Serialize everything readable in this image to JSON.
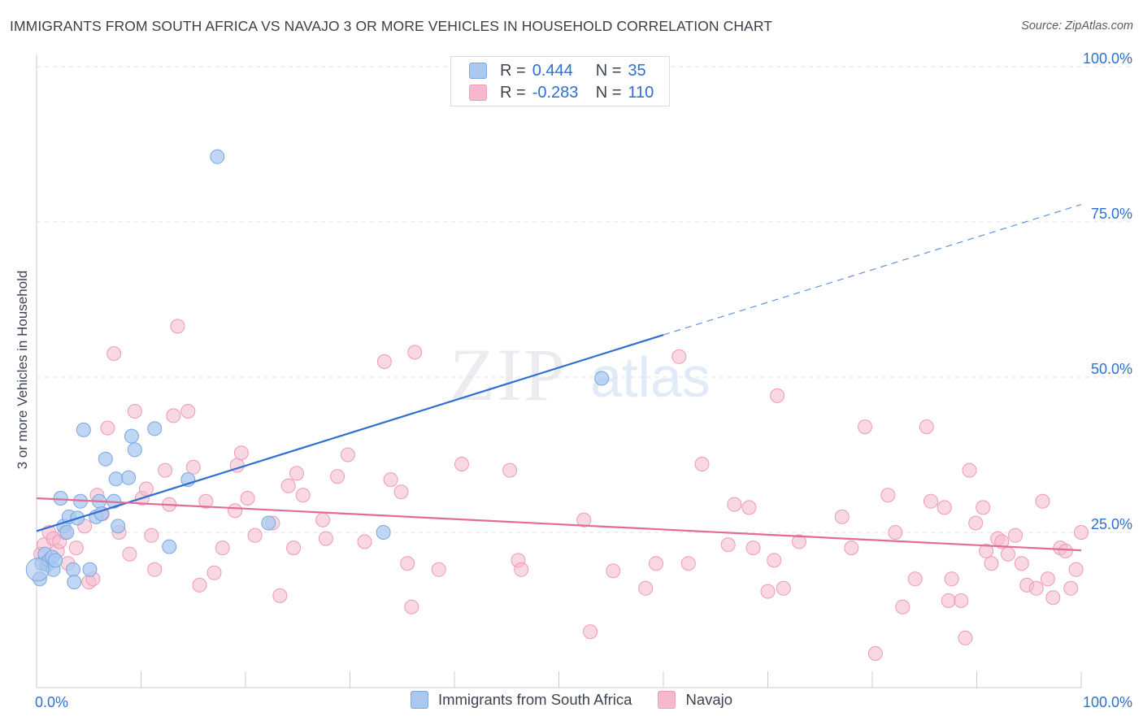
{
  "header": {
    "title": "IMMIGRANTS FROM SOUTH AFRICA VS NAVAJO 3 OR MORE VEHICLES IN HOUSEHOLD CORRELATION CHART",
    "source": "Source: ZipAtlas.com"
  },
  "watermark": {
    "zip": "ZIP",
    "atlas": "atlas"
  },
  "legend": {
    "rows": [
      {
        "r_label": "R =",
        "r_value": "0.444",
        "n_label": "N =",
        "n_value": "35",
        "color": "#aac8f0"
      },
      {
        "r_label": "R =",
        "r_value": "-0.283",
        "n_label": "N =",
        "n_value": "110",
        "color": "#f6b8cc"
      }
    ]
  },
  "bottom_legend": [
    {
      "label": "Immigrants from South Africa",
      "color": "#aac8f0"
    },
    {
      "label": "Navajo",
      "color": "#f6b8cc"
    }
  ],
  "chart_data": {
    "type": "scatter",
    "title": "IMMIGRANTS FROM SOUTH AFRICA VS NAVAJO 3 OR MORE VEHICLES IN HOUSEHOLD CORRELATION CHART",
    "ylabel": "3 or more Vehicles in Household",
    "xlim": [
      0,
      100
    ],
    "ylim": [
      0,
      100
    ],
    "x_tick_labels": [
      {
        "value": 0,
        "label": "0.0%"
      },
      {
        "value": 100,
        "label": "100.0%"
      }
    ],
    "y_tick_labels": [
      {
        "value": 25,
        "label": "25.0%"
      },
      {
        "value": 50,
        "label": "50.0%"
      },
      {
        "value": 75,
        "label": "75.0%"
      },
      {
        "value": 100,
        "label": "100.0%"
      }
    ],
    "grid": true,
    "series": [
      {
        "name": "Immigrants from South Africa",
        "color": "#aac8f0",
        "stroke": "#7aa7e0",
        "trend_color": "#2e6fd1",
        "trend": {
          "x0": 0,
          "y0": 25.2,
          "x1": 60,
          "y1": 56.8,
          "dash_x1": 100,
          "dash_y1": 77.8
        },
        "points": [
          [
            0.3,
            17.5
          ],
          [
            0.5,
            20.0
          ],
          [
            0.8,
            21.5
          ],
          [
            1.0,
            19.8
          ],
          [
            1.2,
            20.5
          ],
          [
            1.5,
            21.0
          ],
          [
            1.6,
            19.0
          ],
          [
            1.8,
            20.5
          ],
          [
            2.3,
            30.5
          ],
          [
            2.6,
            26.0
          ],
          [
            2.9,
            25.0
          ],
          [
            3.1,
            27.5
          ],
          [
            3.5,
            19.0
          ],
          [
            3.6,
            17.0
          ],
          [
            3.9,
            27.3
          ],
          [
            4.2,
            30.0
          ],
          [
            4.5,
            41.5
          ],
          [
            5.1,
            19.0
          ],
          [
            5.7,
            27.5
          ],
          [
            6.0,
            30.0
          ],
          [
            6.2,
            28.0
          ],
          [
            6.6,
            36.8
          ],
          [
            7.4,
            30.0
          ],
          [
            7.6,
            33.6
          ],
          [
            7.8,
            26.0
          ],
          [
            8.8,
            33.8
          ],
          [
            9.1,
            40.5
          ],
          [
            9.4,
            38.3
          ],
          [
            11.3,
            41.7
          ],
          [
            12.7,
            22.7
          ],
          [
            14.5,
            33.5
          ],
          [
            17.3,
            85.5
          ],
          [
            22.2,
            26.5
          ],
          [
            33.2,
            25.0
          ],
          [
            54.1,
            49.8
          ]
        ]
      },
      {
        "name": "Navajo",
        "color": "#f6b8cc",
        "stroke": "#ee9ab5",
        "trend_color": "#e46a97",
        "trend": {
          "x0": 0,
          "y0": 30.5,
          "x1": 100,
          "y1": 22.1
        },
        "points": [
          [
            0.4,
            21.5
          ],
          [
            0.7,
            23.0
          ],
          [
            1.2,
            25.0
          ],
          [
            1.6,
            24.0
          ],
          [
            2.0,
            22.0
          ],
          [
            2.2,
            23.5
          ],
          [
            2.7,
            25.0
          ],
          [
            3.0,
            20.0
          ],
          [
            3.8,
            22.5
          ],
          [
            4.6,
            26.0
          ],
          [
            5.0,
            17.0
          ],
          [
            5.4,
            17.5
          ],
          [
            5.8,
            31.0
          ],
          [
            6.3,
            28.0
          ],
          [
            6.8,
            41.8
          ],
          [
            7.4,
            53.8
          ],
          [
            7.9,
            25.0
          ],
          [
            8.9,
            21.5
          ],
          [
            9.4,
            44.5
          ],
          [
            10.1,
            30.5
          ],
          [
            10.5,
            32.0
          ],
          [
            11.0,
            24.5
          ],
          [
            11.3,
            19.0
          ],
          [
            12.3,
            35.0
          ],
          [
            12.7,
            29.5
          ],
          [
            13.1,
            43.8
          ],
          [
            13.5,
            58.2
          ],
          [
            14.5,
            44.5
          ],
          [
            15.0,
            35.5
          ],
          [
            15.6,
            16.5
          ],
          [
            16.2,
            30.0
          ],
          [
            17.0,
            18.5
          ],
          [
            17.8,
            22.5
          ],
          [
            19.0,
            28.5
          ],
          [
            19.2,
            35.8
          ],
          [
            19.6,
            37.8
          ],
          [
            20.2,
            30.5
          ],
          [
            20.9,
            24.5
          ],
          [
            22.6,
            26.5
          ],
          [
            23.3,
            14.8
          ],
          [
            24.1,
            32.5
          ],
          [
            24.6,
            22.5
          ],
          [
            24.9,
            34.5
          ],
          [
            25.5,
            31.0
          ],
          [
            27.4,
            27.0
          ],
          [
            27.7,
            24.0
          ],
          [
            28.8,
            34.0
          ],
          [
            29.8,
            37.5
          ],
          [
            31.4,
            23.5
          ],
          [
            33.3,
            52.5
          ],
          [
            33.9,
            33.5
          ],
          [
            34.9,
            31.5
          ],
          [
            35.5,
            20.0
          ],
          [
            35.9,
            13.0
          ],
          [
            36.2,
            54.0
          ],
          [
            38.5,
            19.0
          ],
          [
            40.7,
            36.0
          ],
          [
            45.3,
            35.0
          ],
          [
            46.1,
            20.5
          ],
          [
            46.4,
            19.0
          ],
          [
            52.4,
            27.0
          ],
          [
            53.0,
            9.0
          ],
          [
            55.2,
            18.8
          ],
          [
            58.3,
            16.0
          ],
          [
            59.3,
            20.0
          ],
          [
            62.4,
            20.0
          ],
          [
            61.5,
            53.3
          ],
          [
            63.7,
            36.0
          ],
          [
            66.2,
            23.0
          ],
          [
            66.8,
            29.5
          ],
          [
            68.2,
            29.0
          ],
          [
            68.6,
            22.5
          ],
          [
            70.0,
            15.5
          ],
          [
            70.6,
            20.5
          ],
          [
            70.9,
            47.0
          ],
          [
            71.5,
            16.0
          ],
          [
            73.0,
            23.5
          ],
          [
            77.1,
            27.5
          ],
          [
            78.0,
            22.5
          ],
          [
            79.3,
            42.0
          ],
          [
            80.3,
            5.5
          ],
          [
            81.5,
            31.0
          ],
          [
            82.2,
            25.0
          ],
          [
            82.9,
            13.0
          ],
          [
            85.2,
            42.0
          ],
          [
            84.1,
            17.5
          ],
          [
            85.6,
            30.0
          ],
          [
            86.9,
            29.0
          ],
          [
            87.3,
            14.0
          ],
          [
            87.6,
            17.5
          ],
          [
            88.5,
            14.0
          ],
          [
            88.9,
            8.0
          ],
          [
            89.3,
            35.0
          ],
          [
            89.9,
            26.5
          ],
          [
            90.6,
            29.0
          ],
          [
            90.9,
            22.0
          ],
          [
            91.4,
            20.0
          ],
          [
            92.0,
            24.0
          ],
          [
            92.4,
            23.5
          ],
          [
            93.0,
            21.5
          ],
          [
            93.7,
            24.5
          ],
          [
            94.3,
            20.0
          ],
          [
            94.8,
            16.5
          ],
          [
            95.7,
            16.0
          ],
          [
            96.3,
            30.0
          ],
          [
            96.8,
            17.5
          ],
          [
            97.3,
            14.5
          ],
          [
            98.0,
            22.5
          ],
          [
            98.5,
            22.0
          ],
          [
            99.0,
            16.0
          ],
          [
            99.5,
            19.0
          ],
          [
            100.0,
            25.0
          ]
        ]
      }
    ]
  }
}
